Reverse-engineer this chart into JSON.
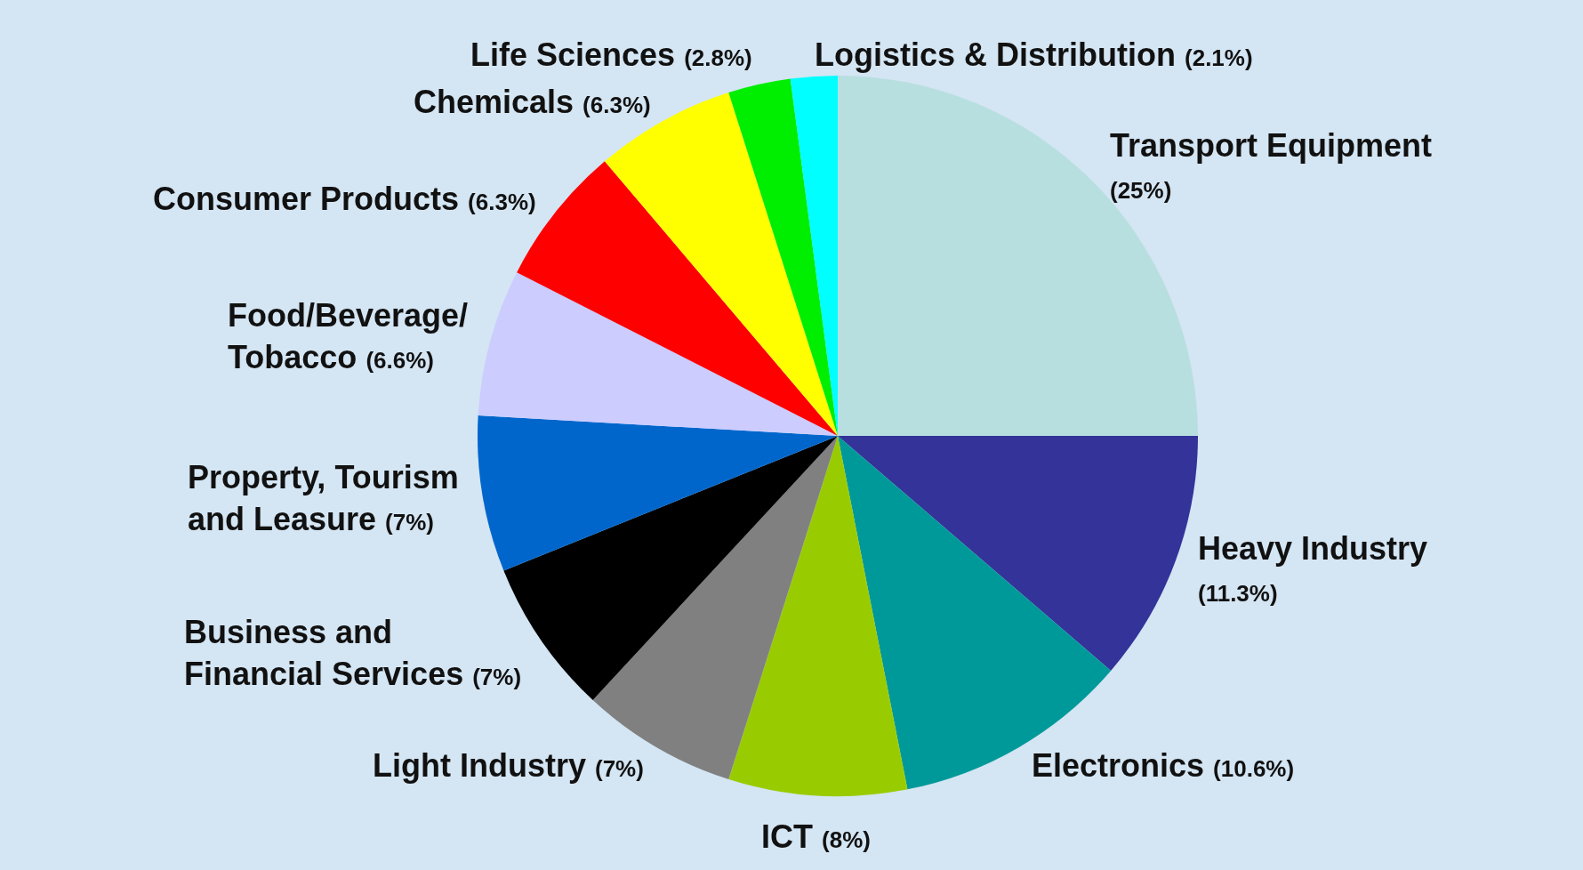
{
  "chart_data": {
    "type": "pie",
    "categories": [
      "Transport Equipment",
      "Heavy Industry",
      "Electronics",
      "ICT",
      "Light Industry",
      "Business and Financial Services",
      "Property, Tourism and Leasure",
      "Food/Beverage/Tobacco",
      "Consumer Products",
      "Chemicals",
      "Life Sciences",
      "Logistics & Distribution"
    ],
    "values": [
      25,
      11.3,
      10.6,
      8,
      7,
      7,
      7,
      6.6,
      6.3,
      6.3,
      2.8,
      2.1
    ],
    "colors": [
      "#b8dfe0",
      "#333399",
      "#009999",
      "#99cc00",
      "#808080",
      "#000000",
      "#0066cc",
      "#ccccff",
      "#ff0000",
      "#ffff00",
      "#00ee00",
      "#00ffff"
    ],
    "value_labels": [
      "(25%)",
      "(11.3%)",
      "(10.6%)",
      "(8%)",
      "(7%)",
      "(7%)",
      "(7%)",
      "(6.6%)",
      "(6.3%)",
      "(6.3%)",
      "(2.8%)",
      "(2.1%)"
    ]
  }
}
